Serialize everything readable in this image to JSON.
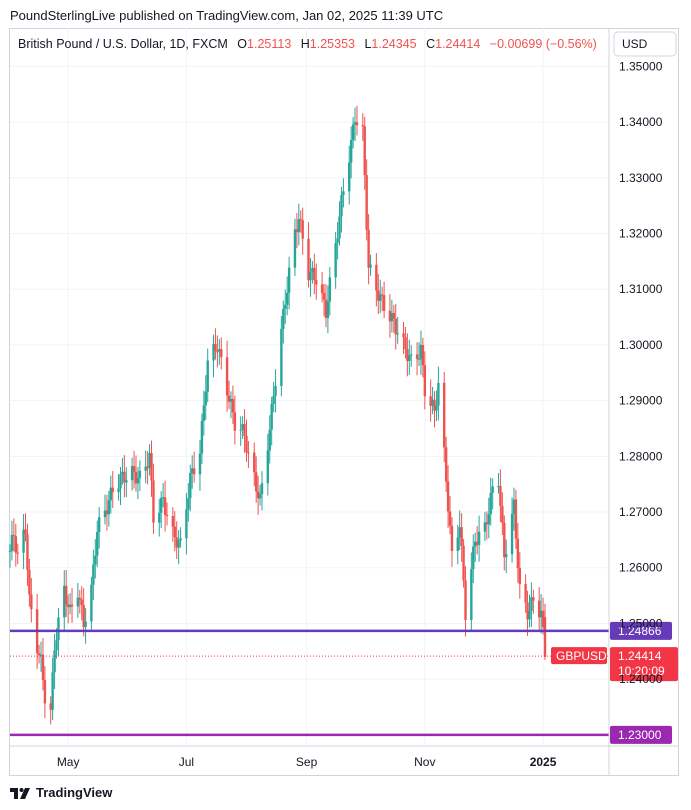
{
  "header": "PoundSterlingLive published on TradingView.com, Jan 02, 2025 11:39 UTC",
  "footer": {
    "brand": "TradingView",
    "logo_icon": "tradingview-logo-icon"
  },
  "colors": {
    "up": "#26a69a",
    "down": "#ef5350",
    "support_line": "#673ab7",
    "target_line": "#9c27b0",
    "last_price": "#f23645"
  },
  "chart_data": {
    "type": "candlestick",
    "title": "British Pound / U.S. Dollar, 1D, FXCM",
    "currency": "USD",
    "ohlc": {
      "o_label": "O",
      "o": "1.25113",
      "h_label": "H",
      "h": "1.25353",
      "l_label": "L",
      "l": "1.24345",
      "c_label": "C",
      "c": "1.24414",
      "change": "−0.00699 (−0.56%)"
    },
    "y_ticks": [
      "1.35000",
      "1.34000",
      "1.33000",
      "1.32000",
      "1.31000",
      "1.30000",
      "1.29000",
      "1.28000",
      "1.27000",
      "1.26000",
      "1.25000",
      "1.24000"
    ],
    "y_range": [
      1.228,
      1.3515
    ],
    "x_labels": [
      "May",
      "Jul",
      "Sep",
      "Nov",
      "2025"
    ],
    "x_label_dates": [
      "2024-05-01",
      "2024-07-01",
      "2024-09-01",
      "2024-11-01",
      "2025-01-01"
    ],
    "date_range": [
      "2024-04-01",
      "2025-01-02"
    ],
    "grid": true,
    "horizontal_lines": [
      {
        "value": 1.24866,
        "label": "1.24866",
        "color": "#673ab7"
      },
      {
        "value": 1.23,
        "label": "1.23000",
        "color": "#9c27b0"
      }
    ],
    "last_price": {
      "value": 1.24414,
      "label": "1.24414",
      "symbol": "GBPUSD",
      "countdown": "10:20:09"
    },
    "price_path": [
      [
        "2024-04-01",
        1.263
      ],
      [
        "2024-04-03",
        1.266
      ],
      [
        "2024-04-05",
        1.262
      ],
      [
        "2024-04-09",
        1.267
      ],
      [
        "2024-04-11",
        1.254
      ],
      [
        "2024-04-15",
        1.246
      ],
      [
        "2024-04-17",
        1.243
      ],
      [
        "2024-04-19",
        1.237
      ],
      [
        "2024-04-22",
        1.234
      ],
      [
        "2024-04-24",
        1.246
      ],
      [
        "2024-04-26",
        1.25
      ],
      [
        "2024-04-29",
        1.256
      ],
      [
        "2024-05-02",
        1.252
      ],
      [
        "2024-05-06",
        1.256
      ],
      [
        "2024-05-09",
        1.25
      ],
      [
        "2024-05-13",
        1.256
      ],
      [
        "2024-05-16",
        1.267
      ],
      [
        "2024-05-20",
        1.27
      ],
      [
        "2024-05-24",
        1.274
      ],
      [
        "2024-05-28",
        1.276
      ],
      [
        "2024-06-03",
        1.277
      ],
      [
        "2024-06-07",
        1.276
      ],
      [
        "2024-06-12",
        1.28
      ],
      [
        "2024-06-14",
        1.269
      ],
      [
        "2024-06-19",
        1.272
      ],
      [
        "2024-06-24",
        1.266
      ],
      [
        "2024-06-28",
        1.264
      ],
      [
        "2024-07-03",
        1.276
      ],
      [
        "2024-07-08",
        1.281
      ],
      [
        "2024-07-12",
        1.297
      ],
      [
        "2024-07-17",
        1.3
      ],
      [
        "2024-07-22",
        1.292
      ],
      [
        "2024-07-26",
        1.286
      ],
      [
        "2024-07-31",
        1.284
      ],
      [
        "2024-08-02",
        1.28
      ],
      [
        "2024-08-05",
        1.276
      ],
      [
        "2024-08-08",
        1.272
      ],
      [
        "2024-08-13",
        1.285
      ],
      [
        "2024-08-16",
        1.294
      ],
      [
        "2024-08-21",
        1.308
      ],
      [
        "2024-08-26",
        1.32
      ],
      [
        "2024-08-28",
        1.323
      ],
      [
        "2024-09-02",
        1.313
      ],
      [
        "2024-09-06",
        1.312
      ],
      [
        "2024-09-11",
        1.306
      ],
      [
        "2024-09-16",
        1.318
      ],
      [
        "2024-09-20",
        1.328
      ],
      [
        "2024-09-24",
        1.336
      ],
      [
        "2024-09-26",
        1.341
      ],
      [
        "2024-09-30",
        1.338
      ],
      [
        "2024-10-03",
        1.314
      ],
      [
        "2024-10-07",
        1.31
      ],
      [
        "2024-10-11",
        1.307
      ],
      [
        "2024-10-16",
        1.304
      ],
      [
        "2024-10-21",
        1.3
      ],
      [
        "2024-10-25",
        1.297
      ],
      [
        "2024-10-30",
        1.299
      ],
      [
        "2024-11-01",
        1.292
      ],
      [
        "2024-11-06",
        1.288
      ],
      [
        "2024-11-08",
        1.293
      ],
      [
        "2024-11-12",
        1.276
      ],
      [
        "2024-11-15",
        1.262
      ],
      [
        "2024-11-19",
        1.268
      ],
      [
        "2024-11-22",
        1.252
      ],
      [
        "2024-11-27",
        1.265
      ],
      [
        "2024-12-02",
        1.267
      ],
      [
        "2024-12-06",
        1.274
      ],
      [
        "2024-12-09",
        1.276
      ],
      [
        "2024-12-12",
        1.262
      ],
      [
        "2024-12-17",
        1.271
      ],
      [
        "2024-12-20",
        1.256
      ],
      [
        "2024-12-24",
        1.252
      ],
      [
        "2024-12-27",
        1.254
      ],
      [
        "2024-12-31",
        1.252
      ],
      [
        "2025-01-02",
        1.244
      ]
    ]
  }
}
